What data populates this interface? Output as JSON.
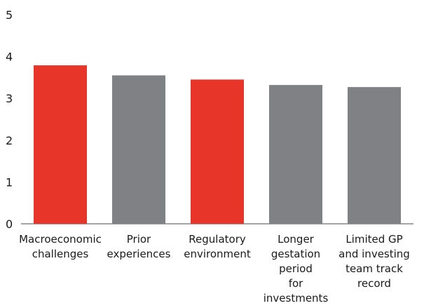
{
  "chart_data": {
    "type": "bar",
    "categories": [
      [
        "Macroeconomic",
        "challenges"
      ],
      [
        "Prior",
        "experiences"
      ],
      [
        "Regulatory",
        "environment"
      ],
      [
        "Longer",
        "gestation",
        "period",
        "for",
        "investments"
      ],
      [
        "Limited GP",
        "and investing",
        "team track",
        "record"
      ]
    ],
    "values": [
      3.79,
      3.55,
      3.45,
      3.32,
      3.27
    ],
    "bar_colors": [
      "#e8352a",
      "#808184",
      "#e8352a",
      "#808184",
      "#808184"
    ],
    "yticks": [
      "0",
      "1",
      "2",
      "3",
      "4",
      "5"
    ],
    "ylim": [
      0,
      5
    ],
    "title": "",
    "xlabel": "",
    "ylabel": "",
    "grid": false,
    "legend": "none"
  }
}
